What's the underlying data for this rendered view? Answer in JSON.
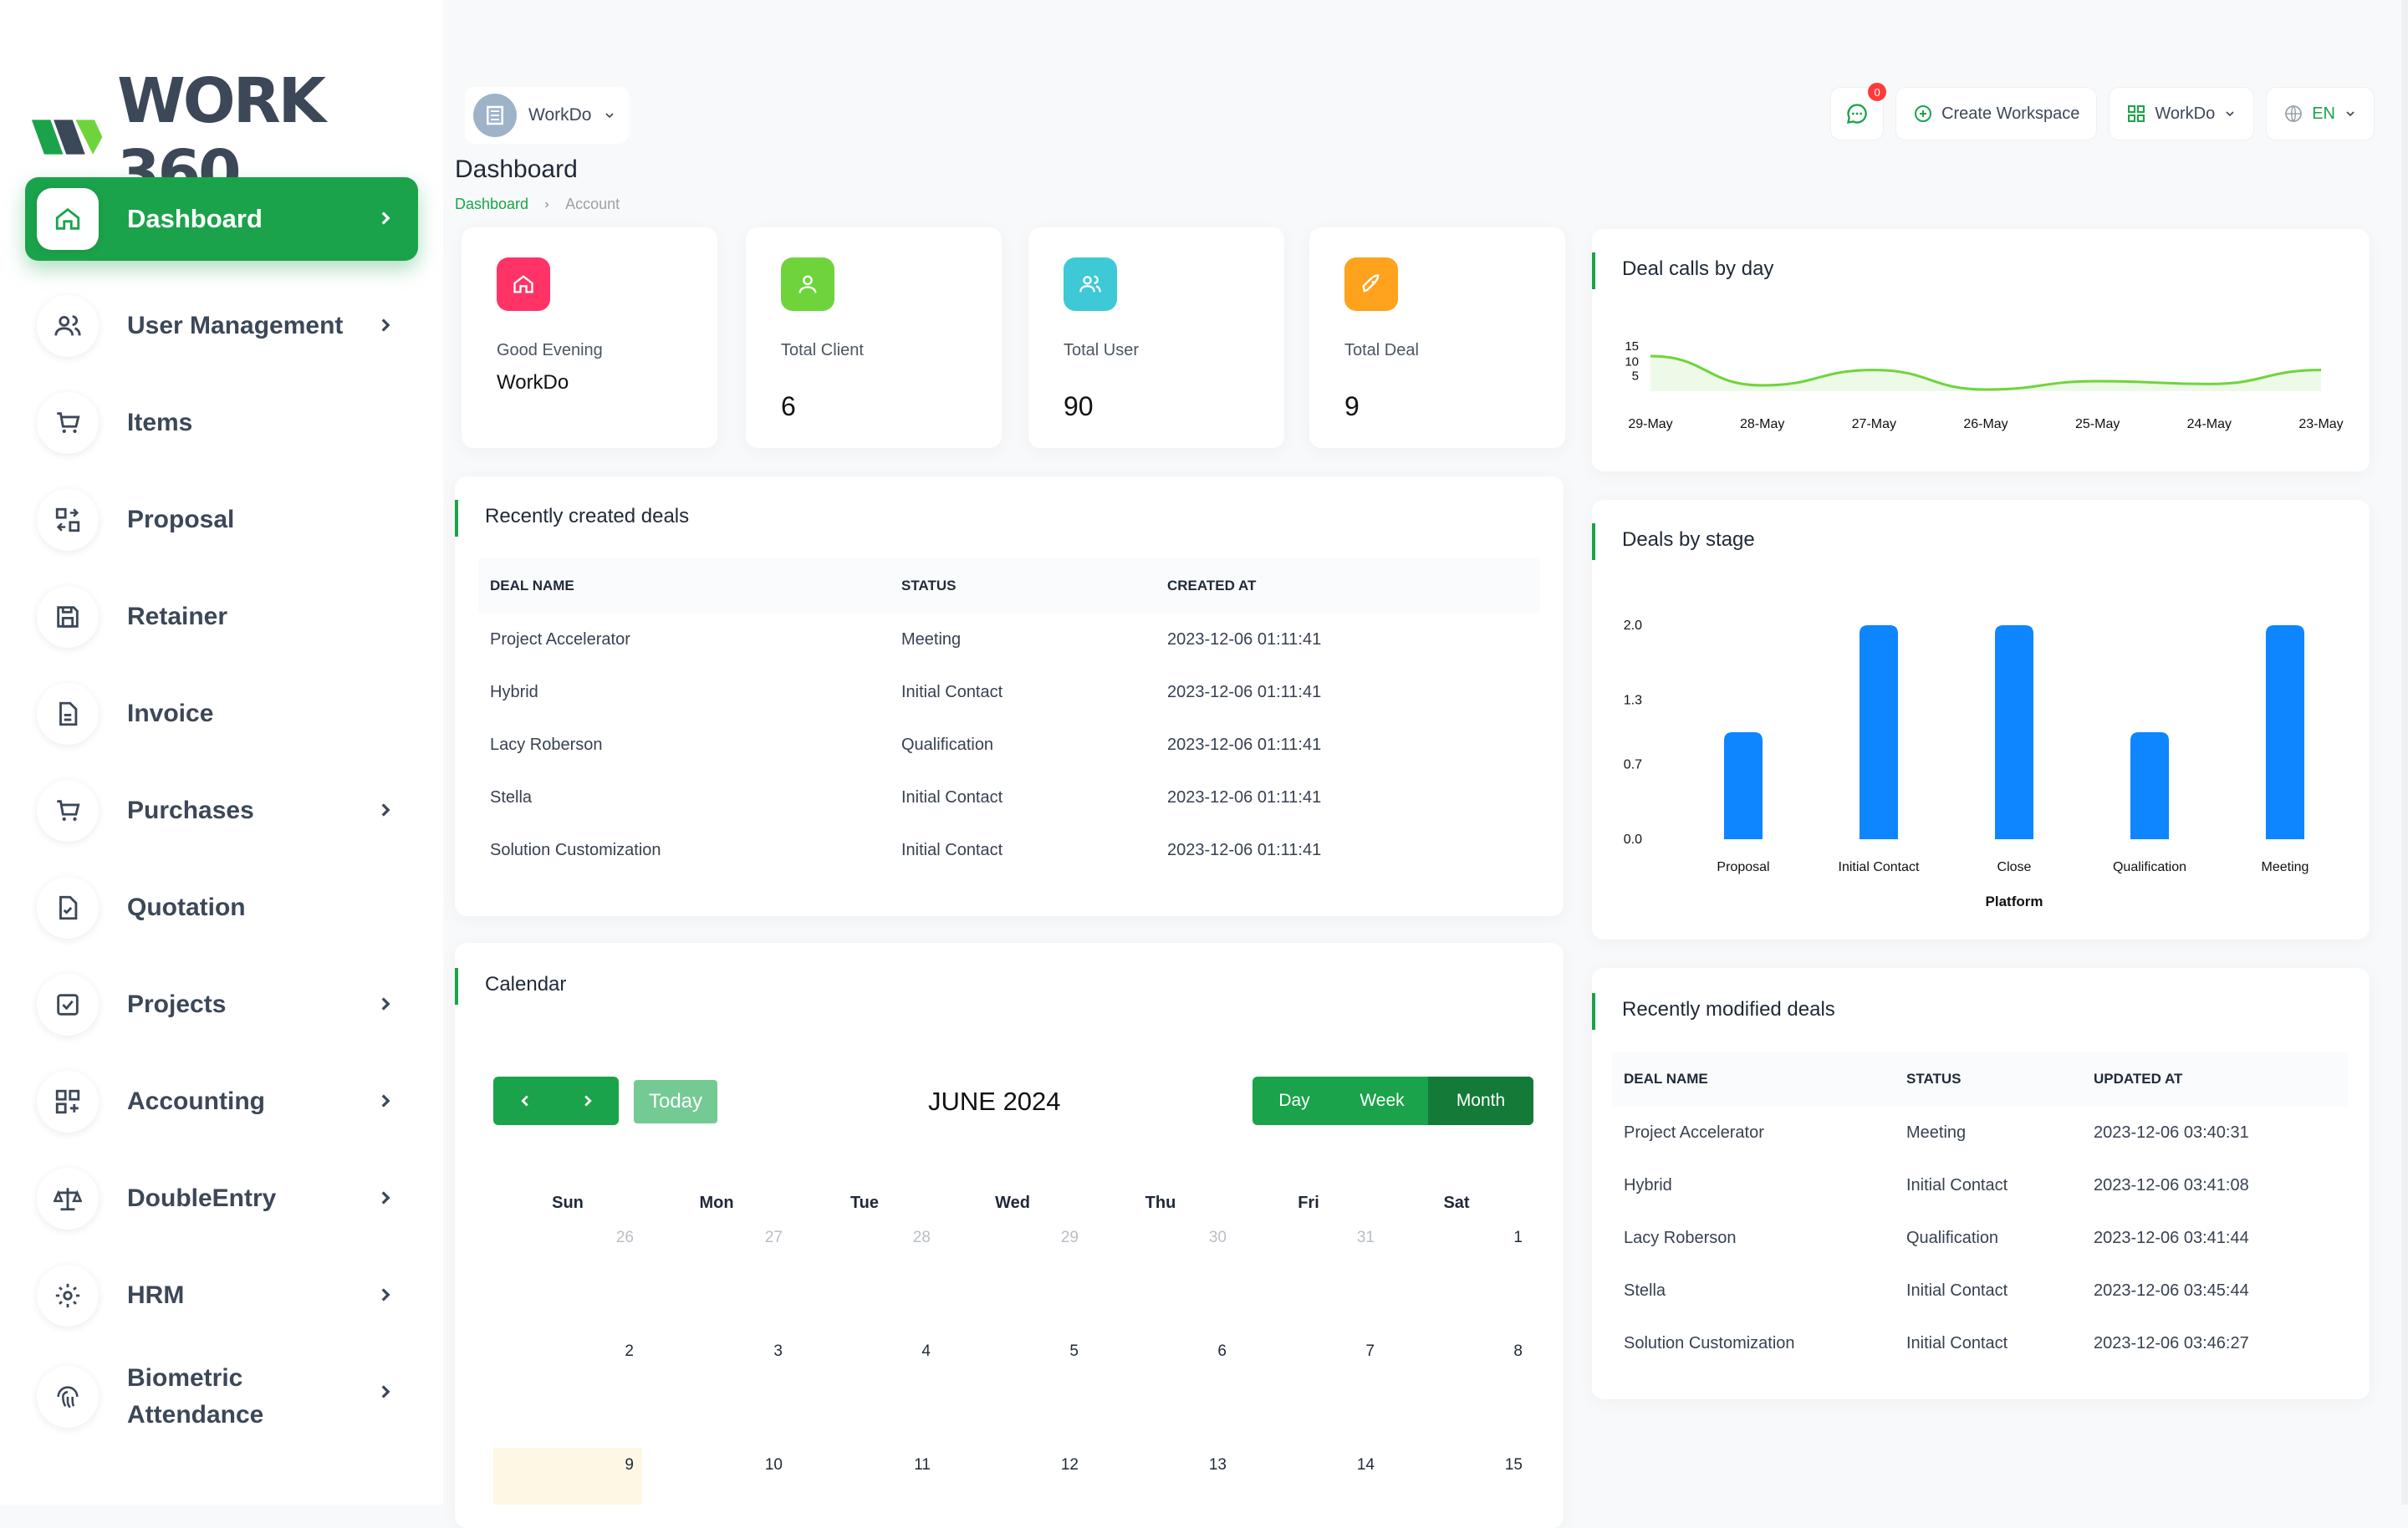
{
  "brand": {
    "logo_text": "WORK 360",
    "green": "#1aa34a",
    "dark": "#3c4858"
  },
  "sidebar": {
    "items": [
      {
        "label": "Dashboard",
        "icon": "home-icon",
        "active": true,
        "has_children": true
      },
      {
        "label": "User Management",
        "icon": "users-icon",
        "has_children": true
      },
      {
        "label": "Items",
        "icon": "cart-icon",
        "has_children": false
      },
      {
        "label": "Proposal",
        "icon": "swap-icon",
        "has_children": false
      },
      {
        "label": "Retainer",
        "icon": "floppy-icon",
        "has_children": false
      },
      {
        "label": "Invoice",
        "icon": "file-icon",
        "has_children": false
      },
      {
        "label": "Purchases",
        "icon": "cart-icon",
        "has_children": true
      },
      {
        "label": "Quotation",
        "icon": "file-check-icon",
        "has_children": false
      },
      {
        "label": "Projects",
        "icon": "checkbox-icon",
        "has_children": true
      },
      {
        "label": "Accounting",
        "icon": "grid-plus-icon",
        "has_children": true
      },
      {
        "label": "DoubleEntry",
        "icon": "scale-icon",
        "has_children": true
      },
      {
        "label": "HRM",
        "icon": "cog-people-icon",
        "has_children": true
      },
      {
        "label": "Biometric Attendance",
        "icon": "fingerprint-icon",
        "has_children": true
      }
    ]
  },
  "topbar": {
    "workspace": "WorkDo",
    "notification_count": "0",
    "create_workspace": "Create Workspace",
    "workspace_menu": "WorkDo",
    "language": "EN"
  },
  "header": {
    "title": "Dashboard",
    "breadcrumb": [
      "Dashboard",
      "Account"
    ]
  },
  "stats": [
    {
      "label": "Good Evening",
      "value": "WorkDo",
      "color": "#ff3366",
      "icon": "home-icon"
    },
    {
      "label": "Total Client",
      "value": "6",
      "color": "#6fd43c",
      "icon": "user-icon"
    },
    {
      "label": "Total User",
      "value": "90",
      "color": "#3ec9d6",
      "icon": "users-icon"
    },
    {
      "label": "Total Deal",
      "value": "9",
      "color": "#ffa21d",
      "icon": "rocket-icon"
    }
  ],
  "recent_deals": {
    "title": "Recently created deals",
    "columns": [
      "DEAL NAME",
      "STATUS",
      "CREATED AT"
    ],
    "rows": [
      [
        "Project Accelerator",
        "Meeting",
        "2023-12-06 01:11:41"
      ],
      [
        "Hybrid",
        "Initial Contact",
        "2023-12-06 01:11:41"
      ],
      [
        "Lacy Roberson",
        "Qualification",
        "2023-12-06 01:11:41"
      ],
      [
        "Stella",
        "Initial Contact",
        "2023-12-06 01:11:41"
      ],
      [
        "Solution Customization",
        "Initial Contact",
        "2023-12-06 01:11:41"
      ]
    ]
  },
  "calendar": {
    "title": "Calendar",
    "today_label": "Today",
    "month_label": "JUNE 2024",
    "views": [
      "Day",
      "Week",
      "Month"
    ],
    "active_view": "Month",
    "weekdays": [
      "Sun",
      "Mon",
      "Tue",
      "Wed",
      "Thu",
      "Fri",
      "Sat"
    ],
    "weeks": [
      [
        "26",
        "27",
        "28",
        "29",
        "30",
        "31",
        "1"
      ],
      [
        "2",
        "3",
        "4",
        "5",
        "6",
        "7",
        "8"
      ],
      [
        "9",
        "10",
        "11",
        "12",
        "13",
        "14",
        "15"
      ]
    ]
  },
  "modified_deals": {
    "title": "Recently modified deals",
    "columns": [
      "DEAL NAME",
      "STATUS",
      "UPDATED AT"
    ],
    "rows": [
      [
        "Project Accelerator",
        "Meeting",
        "2023-12-06 03:40:31"
      ],
      [
        "Hybrid",
        "Initial Contact",
        "2023-12-06 03:41:08"
      ],
      [
        "Lacy Roberson",
        "Qualification",
        "2023-12-06 03:41:44"
      ],
      [
        "Stella",
        "Initial Contact",
        "2023-12-06 03:45:44"
      ],
      [
        "Solution Customization",
        "Initial Contact",
        "2023-12-06 03:46:27"
      ]
    ]
  },
  "chart_data": [
    {
      "type": "line",
      "title": "Deal calls by day",
      "categories": [
        "29-May",
        "28-May",
        "27-May",
        "26-May",
        "25-May",
        "24-May",
        "23-May"
      ],
      "y_ticks": [
        "15",
        "10",
        "5"
      ],
      "values": [
        12,
        1.5,
        7,
        0,
        3,
        2,
        7
      ],
      "ylim": [
        0,
        15
      ],
      "color": "#6fd43c"
    },
    {
      "type": "bar",
      "title": "Deals by stage",
      "categories": [
        "Proposal",
        "Initial Contact",
        "Close",
        "Qualification",
        "Meeting"
      ],
      "values": [
        1,
        2,
        2,
        1,
        2
      ],
      "y_ticks": [
        "2.0",
        "1.3",
        "0.7",
        "0.0"
      ],
      "ylim": [
        0,
        2
      ],
      "xlabel": "Platform",
      "color": "#0d86ff"
    }
  ]
}
